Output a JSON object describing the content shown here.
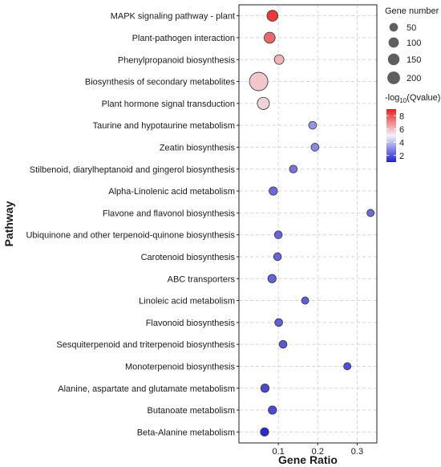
{
  "chart_data": {
    "type": "scatter",
    "xlabel": "Gene Ratio",
    "ylabel": "Pathway",
    "xlim": [
      0,
      0.35
    ],
    "xticks": [
      0.1,
      0.2,
      0.3
    ],
    "xtick_labels": [
      "0.1",
      "0.2",
      "0.3"
    ],
    "grid": true,
    "categories": [
      "MAPK signaling pathway - plant",
      "Plant-pathogen interaction",
      "Phenylpropanoid biosynthesis",
      "Biosynthesis of secondary metabolites",
      "Plant hormone signal transduction",
      "Taurine and hypotaurine metabolism",
      "Zeatin biosynthesis",
      "Stilbenoid, diarylheptanoid and gingerol biosynthesis",
      "Alpha-Linolenic acid metabolism",
      "Flavone and flavonol biosynthesis",
      "Ubiquinone and other terpenoid-quinone biosynthesis",
      "Carotenoid biosynthesis",
      "ABC transporters",
      "Linoleic acid metabolism",
      "Flavonoid biosynthesis",
      "Sesquiterpenoid and triterpenoid biosynthesis",
      "Monoterpenoid biosynthesis",
      "Alanine, aspartate and glutamate metabolism",
      "Butanoate metabolism",
      "Beta-Alanine metabolism"
    ],
    "points": [
      {
        "pathway": "MAPK signaling pathway - plant",
        "gene_ratio": 0.085,
        "gene_number": 60,
        "neg_log10_q": 8.5
      },
      {
        "pathway": "Plant-pathogen interaction",
        "gene_ratio": 0.078,
        "gene_number": 60,
        "neg_log10_q": 7.6
      },
      {
        "pathway": "Phenylpropanoid biosynthesis",
        "gene_ratio": 0.102,
        "gene_number": 40,
        "neg_log10_q": 6.2
      },
      {
        "pathway": "Biosynthesis of secondary metabolites",
        "gene_ratio": 0.05,
        "gene_number": 240,
        "neg_log10_q": 5.8
      },
      {
        "pathway": "Plant hormone signal transduction",
        "gene_ratio": 0.062,
        "gene_number": 80,
        "neg_log10_q": 5.6
      },
      {
        "pathway": "Taurine and hypotaurine metabolism",
        "gene_ratio": 0.187,
        "gene_number": 20,
        "neg_log10_q": 3.2
      },
      {
        "pathway": "Zeatin biosynthesis",
        "gene_ratio": 0.193,
        "gene_number": 20,
        "neg_log10_q": 3.0
      },
      {
        "pathway": "Stilbenoid, diarylheptanoid and gingerol biosynthesis",
        "gene_ratio": 0.138,
        "gene_number": 20,
        "neg_log10_q": 2.6
      },
      {
        "pathway": "Alpha-Linolenic acid metabolism",
        "gene_ratio": 0.087,
        "gene_number": 25,
        "neg_log10_q": 2.4
      },
      {
        "pathway": "Flavone and flavonol biosynthesis",
        "gene_ratio": 0.334,
        "gene_number": 15,
        "neg_log10_q": 2.4
      },
      {
        "pathway": "Ubiquinone and other terpenoid-quinone biosynthesis",
        "gene_ratio": 0.1,
        "gene_number": 20,
        "neg_log10_q": 2.3
      },
      {
        "pathway": "Carotenoid biosynthesis",
        "gene_ratio": 0.098,
        "gene_number": 20,
        "neg_log10_q": 2.3
      },
      {
        "pathway": "ABC transporters",
        "gene_ratio": 0.084,
        "gene_number": 25,
        "neg_log10_q": 2.3
      },
      {
        "pathway": "Linoleic acid metabolism",
        "gene_ratio": 0.168,
        "gene_number": 15,
        "neg_log10_q": 2.2
      },
      {
        "pathway": "Flavonoid biosynthesis",
        "gene_ratio": 0.101,
        "gene_number": 20,
        "neg_log10_q": 2.2
      },
      {
        "pathway": "Sesquiterpenoid and triterpenoid biosynthesis",
        "gene_ratio": 0.112,
        "gene_number": 20,
        "neg_log10_q": 2.1
      },
      {
        "pathway": "Monoterpenoid biosynthesis",
        "gene_ratio": 0.275,
        "gene_number": 15,
        "neg_log10_q": 1.9
      },
      {
        "pathway": "Alanine, aspartate and glutamate metabolism",
        "gene_ratio": 0.066,
        "gene_number": 25,
        "neg_log10_q": 1.8
      },
      {
        "pathway": "Butanoate metabolism",
        "gene_ratio": 0.085,
        "gene_number": 25,
        "neg_log10_q": 1.8
      },
      {
        "pathway": "Beta-Alanine metabolism",
        "gene_ratio": 0.065,
        "gene_number": 25,
        "neg_log10_q": 1.2
      }
    ],
    "size_legend": {
      "title": "Gene number",
      "values": [
        50,
        100,
        150,
        200
      ],
      "labels": [
        "50",
        "100",
        "150",
        "200"
      ],
      "placement": "top-right"
    },
    "color_legend": {
      "title_prefix": "-log",
      "title_subscript": "10",
      "title_suffix": "(Qvalue)",
      "range": [
        1,
        9
      ],
      "ticks": [
        2,
        4,
        6,
        8
      ],
      "tick_labels": [
        "2",
        "4",
        "6",
        "8"
      ],
      "low_color": "#1f1fd6",
      "mid_color": "#f2f2f7",
      "high_color": "#ee1c1c",
      "placement": "right"
    }
  }
}
